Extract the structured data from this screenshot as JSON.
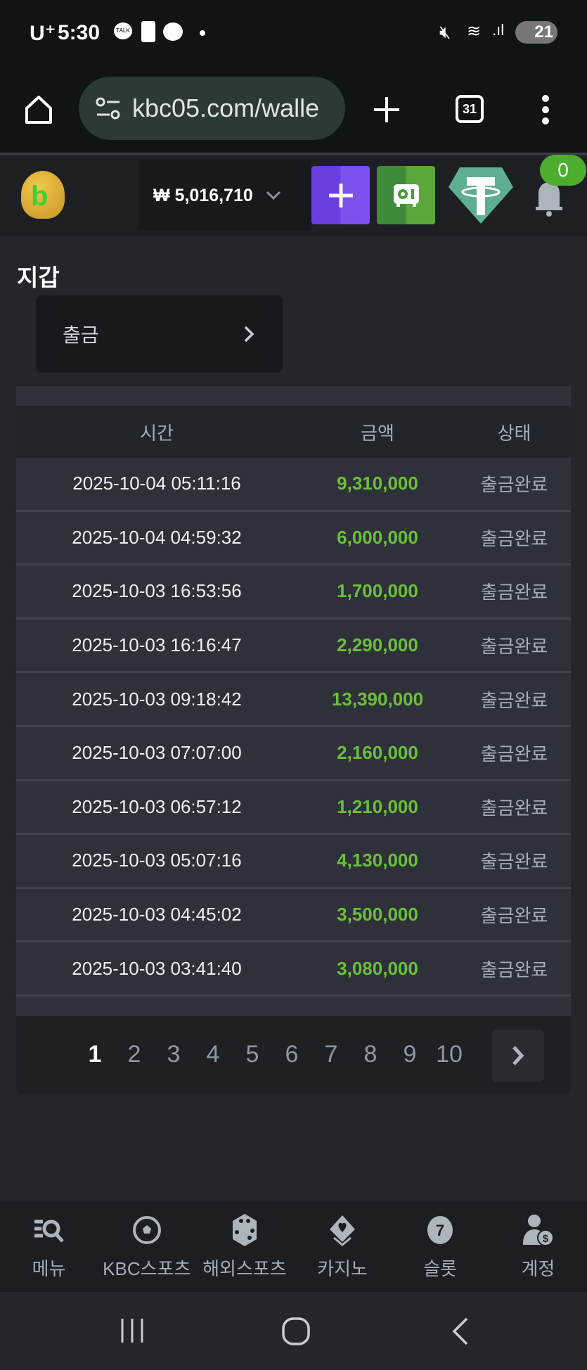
{
  "status_bar": {
    "carrier": "U⁺",
    "time": "5:30",
    "battery": "21"
  },
  "browser": {
    "url": "kbc05.com/walle",
    "tab_count": "31"
  },
  "header": {
    "balance": "₩ 5,016,710",
    "notification_count": "0",
    "accent_purple": "#7b4ee8",
    "accent_green": "#4a9a3a",
    "tether_color": "#5fae94"
  },
  "page": {
    "title": "지갑",
    "withdraw_label": "출금"
  },
  "table": {
    "columns": [
      "시간",
      "금액",
      "상태"
    ],
    "rows": [
      {
        "time": "2025-10-04 05:11:16",
        "amount": "9,310,000",
        "status": "출금완료"
      },
      {
        "time": "2025-10-04 04:59:32",
        "amount": "6,000,000",
        "status": "출금완료"
      },
      {
        "time": "2025-10-03 16:53:56",
        "amount": "1,700,000",
        "status": "출금완료"
      },
      {
        "time": "2025-10-03 16:16:47",
        "amount": "2,290,000",
        "status": "출금완료"
      },
      {
        "time": "2025-10-03 09:18:42",
        "amount": "13,390,000",
        "status": "출금완료"
      },
      {
        "time": "2025-10-03 07:07:00",
        "amount": "2,160,000",
        "status": "출금완료"
      },
      {
        "time": "2025-10-03 06:57:12",
        "amount": "1,210,000",
        "status": "출금완료"
      },
      {
        "time": "2025-10-03 05:07:16",
        "amount": "4,130,000",
        "status": "출금완료"
      },
      {
        "time": "2025-10-03 04:45:02",
        "amount": "3,500,000",
        "status": "출금완료"
      },
      {
        "time": "2025-10-03 03:41:40",
        "amount": "3,080,000",
        "status": "출금완료"
      }
    ]
  },
  "pagination": {
    "pages": [
      "1",
      "2",
      "3",
      "4",
      "5",
      "6",
      "7",
      "8",
      "9",
      "10"
    ],
    "current": "1"
  },
  "bottom_nav": [
    {
      "label": "메뉴",
      "icon": "menu-search-icon"
    },
    {
      "label": "KBC스포츠",
      "icon": "soccer-ball-icon"
    },
    {
      "label": "해외스포츠",
      "icon": "dice-icon"
    },
    {
      "label": "카지노",
      "icon": "cards-icon"
    },
    {
      "label": "슬롯",
      "icon": "slot-seven-icon"
    },
    {
      "label": "계정",
      "icon": "account-coin-icon"
    }
  ]
}
